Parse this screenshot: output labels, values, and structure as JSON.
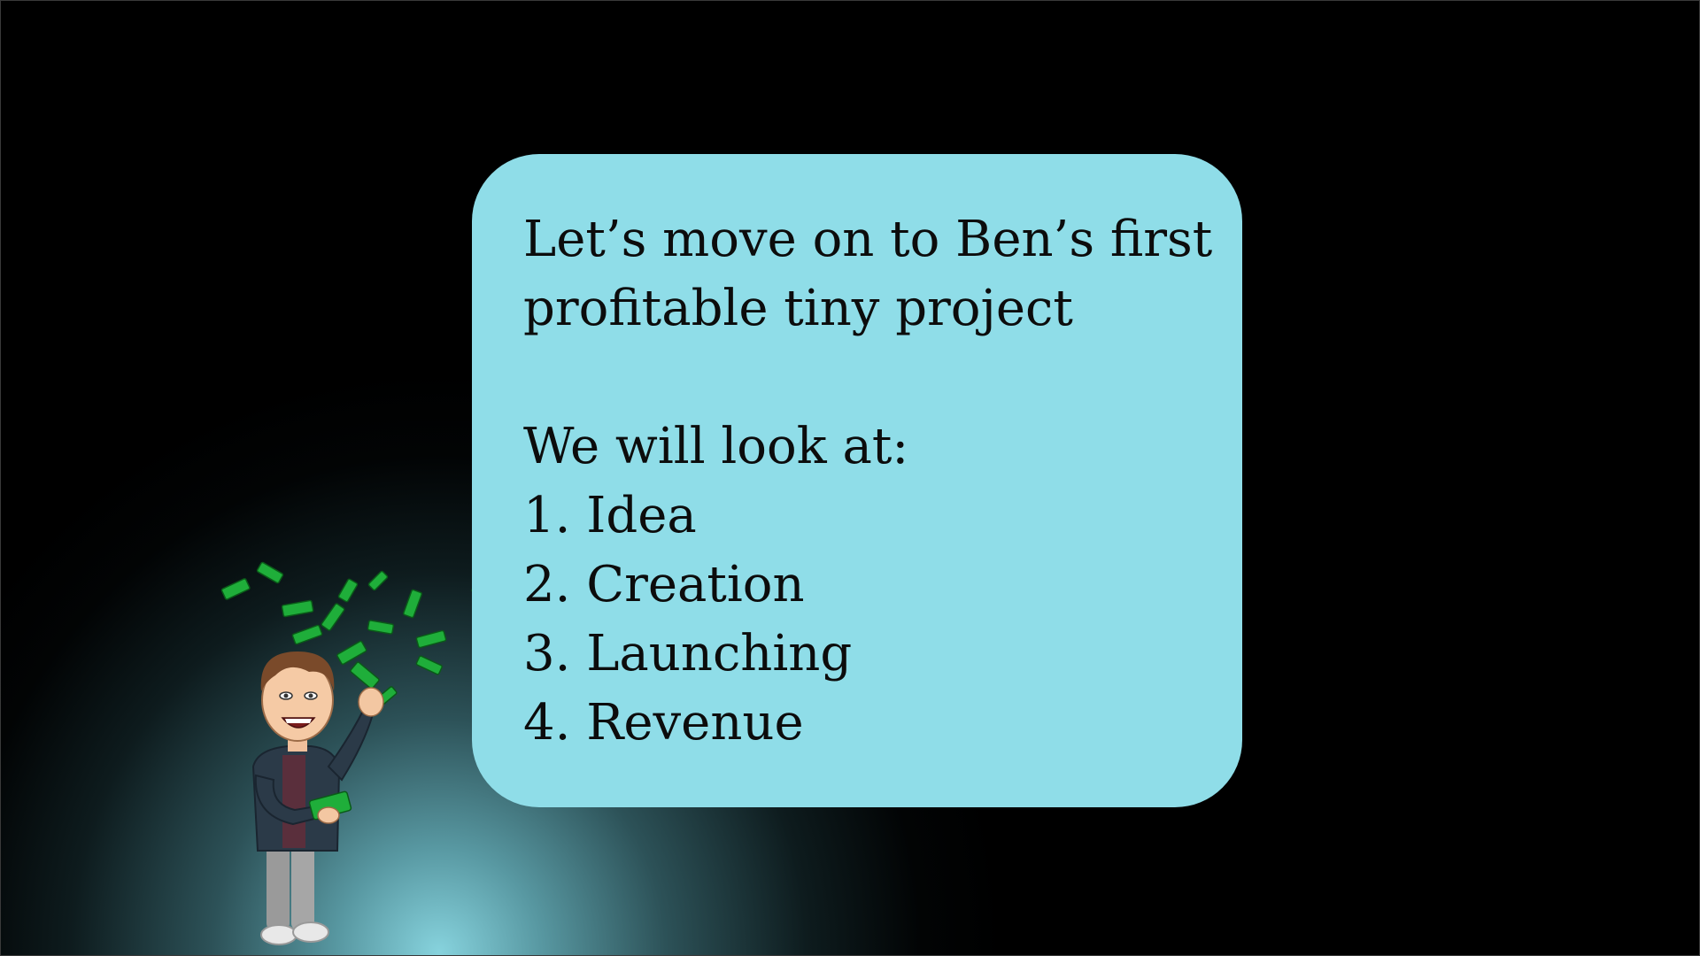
{
  "slide": {
    "background_color": "#000000",
    "spotlight_color": "#8edee9",
    "bubble_color": "#8fdde8"
  },
  "bubble": {
    "heading_line1": "Let’s move on to Ben’s first",
    "heading_line2": "profitable tiny project",
    "intro": "We will look at:",
    "items": [
      "1. Idea",
      "2. Creation",
      "3. Launching",
      "4. Revenue"
    ]
  },
  "illustration": {
    "icon": "cartoon-man-throwing-money-icon"
  }
}
